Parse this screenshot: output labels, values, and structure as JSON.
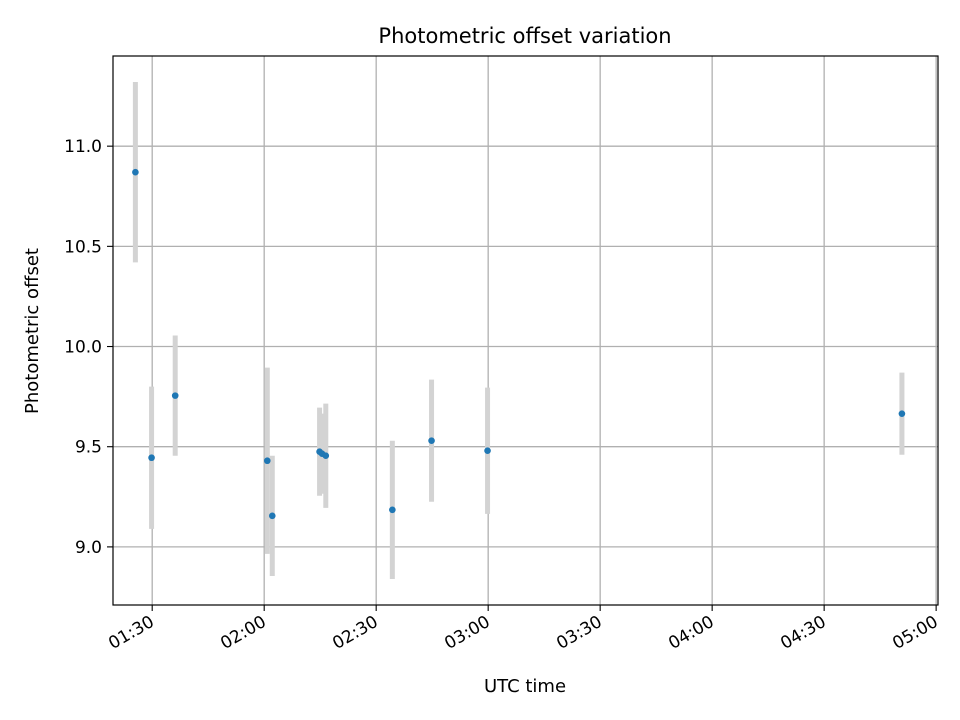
{
  "chart_data": {
    "type": "scatter",
    "title": "Photometric offset variation",
    "xlabel": "UTC time",
    "ylabel": "Photometric offset",
    "x_axis_type": "time",
    "xlim": [
      "01:19:30",
      "05:00:30"
    ],
    "ylim": [
      8.71,
      11.45
    ],
    "grid": true,
    "x_ticks": [
      "01:30",
      "02:00",
      "02:30",
      "03:00",
      "03:30",
      "04:00",
      "04:30",
      "05:00"
    ],
    "y_ticks": [
      9.0,
      9.5,
      10.0,
      10.5,
      11.0
    ],
    "y_tick_labels": [
      "9.0",
      "9.5",
      "10.0",
      "10.5",
      "11.0"
    ],
    "colors": {
      "point": "#1f77b4",
      "errorbar": "#d3d3d3",
      "grid": "#b0b0b0"
    },
    "points": [
      {
        "x": "01:25:30",
        "y": 10.87,
        "yerr": 0.45
      },
      {
        "x": "01:29:50",
        "y": 9.445,
        "yerr": 0.355
      },
      {
        "x": "01:36:10",
        "y": 9.755,
        "yerr": 0.3
      },
      {
        "x": "02:00:50",
        "y": 9.43,
        "yerr": 0.465
      },
      {
        "x": "02:02:10",
        "y": 9.155,
        "yerr": 0.3
      },
      {
        "x": "02:14:50",
        "y": 9.475,
        "yerr": 0.22
      },
      {
        "x": "02:15:30",
        "y": 9.465,
        "yerr": 0.2
      },
      {
        "x": "02:16:30",
        "y": 9.455,
        "yerr": 0.26
      },
      {
        "x": "02:34:20",
        "y": 9.185,
        "yerr": 0.345
      },
      {
        "x": "02:44:50",
        "y": 9.53,
        "yerr": 0.305
      },
      {
        "x": "02:59:50",
        "y": 9.48,
        "yerr": 0.315
      },
      {
        "x": "04:50:50",
        "y": 9.665,
        "yerr": 0.205
      }
    ]
  }
}
